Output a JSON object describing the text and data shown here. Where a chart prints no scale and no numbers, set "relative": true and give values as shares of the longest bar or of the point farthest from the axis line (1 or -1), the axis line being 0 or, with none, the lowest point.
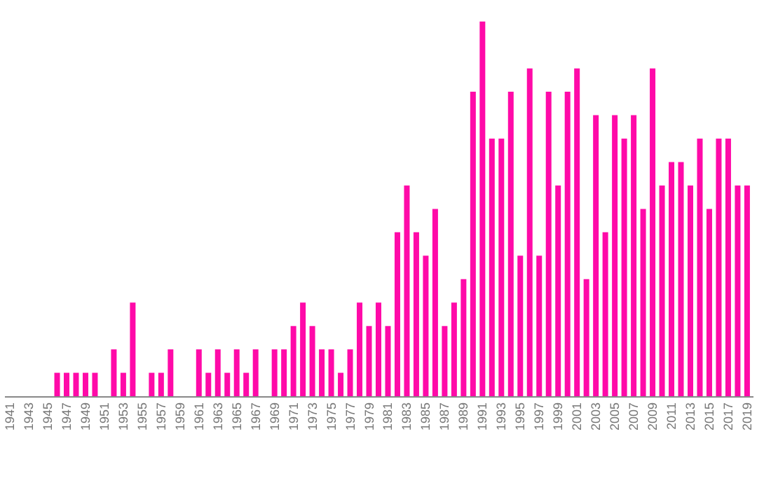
{
  "chart_data": {
    "type": "bar",
    "relative": true,
    "color": "#ff0aa8",
    "categories": [
      "1941",
      null,
      "1943",
      null,
      "1945",
      null,
      "1947",
      null,
      "1949",
      null,
      "1951",
      null,
      "1953",
      null,
      "1955",
      null,
      "1957",
      null,
      "1959",
      null,
      "1961",
      null,
      "1963",
      null,
      "1965",
      null,
      "1967",
      null,
      "1969",
      null,
      "1971",
      null,
      "1973",
      null,
      "1975",
      null,
      "1977",
      null,
      "1979",
      null,
      "1981",
      null,
      "1983",
      null,
      "1985",
      null,
      "1987",
      null,
      "1989",
      null,
      "1991",
      null,
      "1993",
      null,
      "1995",
      null,
      "1997",
      null,
      "1999",
      null,
      "2001",
      null,
      "2003",
      null,
      "2005",
      null,
      "2007",
      null,
      "2009",
      null,
      "2011",
      null,
      "2013",
      null,
      "2015",
      null,
      "2017",
      null,
      "2019"
    ],
    "values": [
      0,
      0,
      0,
      0,
      0,
      0.0625,
      0.0625,
      0.0625,
      0.0625,
      0.0625,
      0,
      0.125,
      0.0625,
      0.25,
      0,
      0.0625,
      0.0625,
      0.125,
      0,
      0,
      0.125,
      0.0625,
      0.125,
      0.0625,
      0.125,
      0.0625,
      0.125,
      0,
      0.125,
      0.125,
      0.1875,
      0.25,
      0.1875,
      0.125,
      0.125,
      0.0625,
      0.125,
      0.25,
      0.1875,
      0.25,
      0.1875,
      0.4375,
      0.5625,
      0.4375,
      0.375,
      0.5,
      0.1875,
      0.25,
      0.3125,
      0.8125,
      1,
      0.6875,
      0.6875,
      0.8125,
      0.375,
      0.875,
      0.375,
      0.8125,
      0.5625,
      0.8125,
      0.875,
      0.3125,
      0.75,
      0.4375,
      0.75,
      0.6875,
      0.75,
      0.5,
      0.875,
      0.5625,
      0.625,
      0.625,
      0.5625,
      0.6875,
      0.5,
      0.6875,
      0.6875,
      0.5625,
      0.5625
    ]
  }
}
